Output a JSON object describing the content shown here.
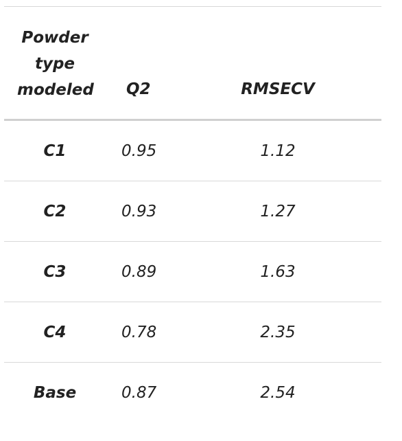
{
  "table": {
    "header": [
      "Powder type modeled",
      "Q2",
      "RMSECV"
    ],
    "rows": [
      [
        "C1",
        "0.95",
        "1.12"
      ],
      [
        "C2",
        "0.93",
        "1.27"
      ],
      [
        "C3",
        "0.89",
        "1.63"
      ],
      [
        "C4",
        "0.78",
        "2.35"
      ],
      [
        "Base",
        "0.87",
        "2.54"
      ]
    ]
  }
}
